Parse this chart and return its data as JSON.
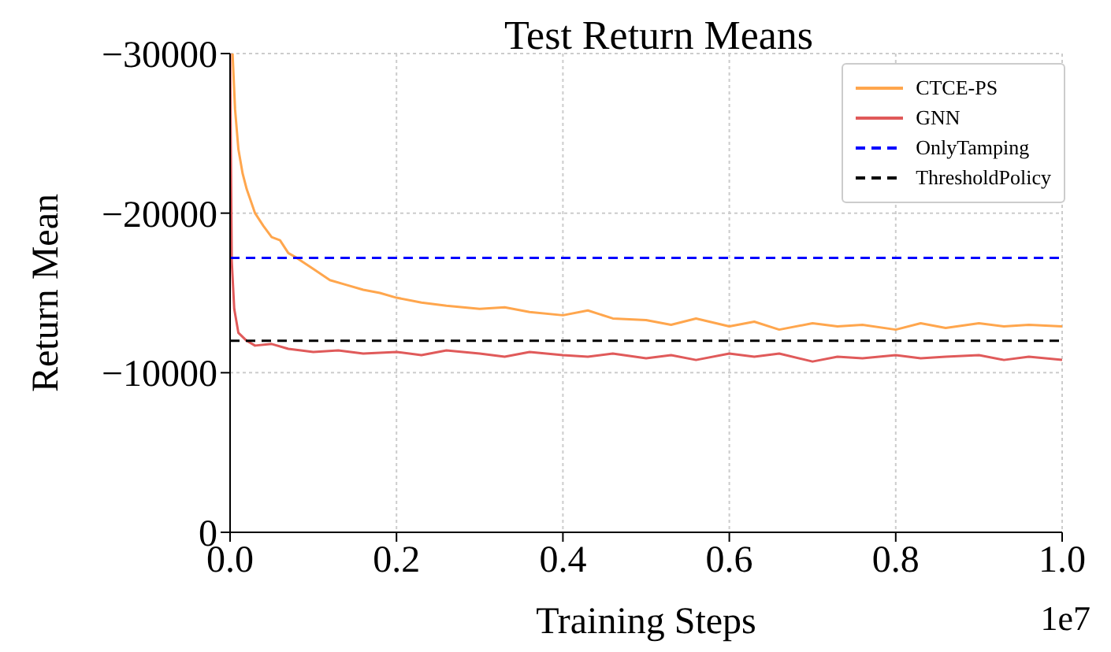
{
  "chart_data": {
    "type": "line",
    "title": "Test Return Means",
    "xlabel": "Training Steps",
    "ylabel": "Return Mean",
    "annotations": [
      "1e7"
    ],
    "xlim": [
      0,
      1
    ],
    "xticks": [
      {
        "value": 0,
        "label": "0.0"
      },
      {
        "value": 0.2,
        "label": "0.2"
      },
      {
        "value": 0.4,
        "label": "0.4"
      },
      {
        "value": 0.6,
        "label": "0.6"
      },
      {
        "value": 0.8,
        "label": "0.8"
      },
      {
        "value": 1,
        "label": "1.0"
      }
    ],
    "ylim": [
      0,
      -30000
    ],
    "yticks": [
      0,
      -10000,
      -20000,
      -30000
    ],
    "grid": true,
    "legend": "top right",
    "marker": "none",
    "series": [
      {
        "name": "CTCE-PS",
        "color": "#ffa64d",
        "line_style": "solid",
        "x": [
          0.003,
          0.006,
          0.01,
          0.015,
          0.02,
          0.03,
          0.04,
          0.05,
          0.06,
          0.07,
          0.08,
          0.1,
          0.12,
          0.14,
          0.16,
          0.18,
          0.2,
          0.23,
          0.26,
          0.3,
          0.33,
          0.36,
          0.4,
          0.43,
          0.46,
          0.5,
          0.53,
          0.56,
          0.6,
          0.63,
          0.66,
          0.7,
          0.73,
          0.76,
          0.8,
          0.83,
          0.86,
          0.9,
          0.93,
          0.96,
          1.0
        ],
        "values": [
          -30000,
          -26500,
          -24000,
          -22500,
          -21500,
          -20000,
          -19200,
          -18500,
          -18300,
          -17500,
          -17200,
          -16500,
          -15800,
          -15500,
          -15200,
          -15000,
          -14700,
          -14400,
          -14200,
          -14000,
          -14100,
          -13800,
          -13600,
          -13900,
          -13400,
          -13300,
          -13000,
          -13400,
          -12900,
          -13200,
          -12700,
          -13100,
          -12900,
          -13000,
          -12700,
          -13100,
          -12800,
          -13100,
          -12900,
          -13000,
          -12900
        ]
      },
      {
        "name": "GNN",
        "color": "#e05a5a",
        "line_style": "solid",
        "x": [
          0,
          0.002,
          0.005,
          0.01,
          0.02,
          0.03,
          0.05,
          0.07,
          0.1,
          0.13,
          0.16,
          0.2,
          0.23,
          0.26,
          0.3,
          0.33,
          0.36,
          0.4,
          0.43,
          0.46,
          0.5,
          0.53,
          0.56,
          0.6,
          0.63,
          0.66,
          0.7,
          0.73,
          0.76,
          0.8,
          0.83,
          0.86,
          0.9,
          0.93,
          0.96,
          1.0
        ],
        "values": [
          -30000,
          -17000,
          -14000,
          -12500,
          -12000,
          -11700,
          -11800,
          -11500,
          -11300,
          -11400,
          -11200,
          -11300,
          -11100,
          -11400,
          -11200,
          -11000,
          -11300,
          -11100,
          -11000,
          -11200,
          -10900,
          -11100,
          -10800,
          -11200,
          -11000,
          -11200,
          -10700,
          -11000,
          -10900,
          -11100,
          -10900,
          -11000,
          -11100,
          -10800,
          -11000,
          -10800
        ]
      },
      {
        "name": "OnlyTamping",
        "color": "#0000ff",
        "line_style": "dashed",
        "x": [
          0,
          1
        ],
        "values": [
          -17200,
          -17200
        ]
      },
      {
        "name": "ThresholdPolicy",
        "color": "#000000",
        "line_style": "dashed",
        "x": [
          0,
          1
        ],
        "values": [
          -12000,
          -12000
        ]
      }
    ]
  }
}
